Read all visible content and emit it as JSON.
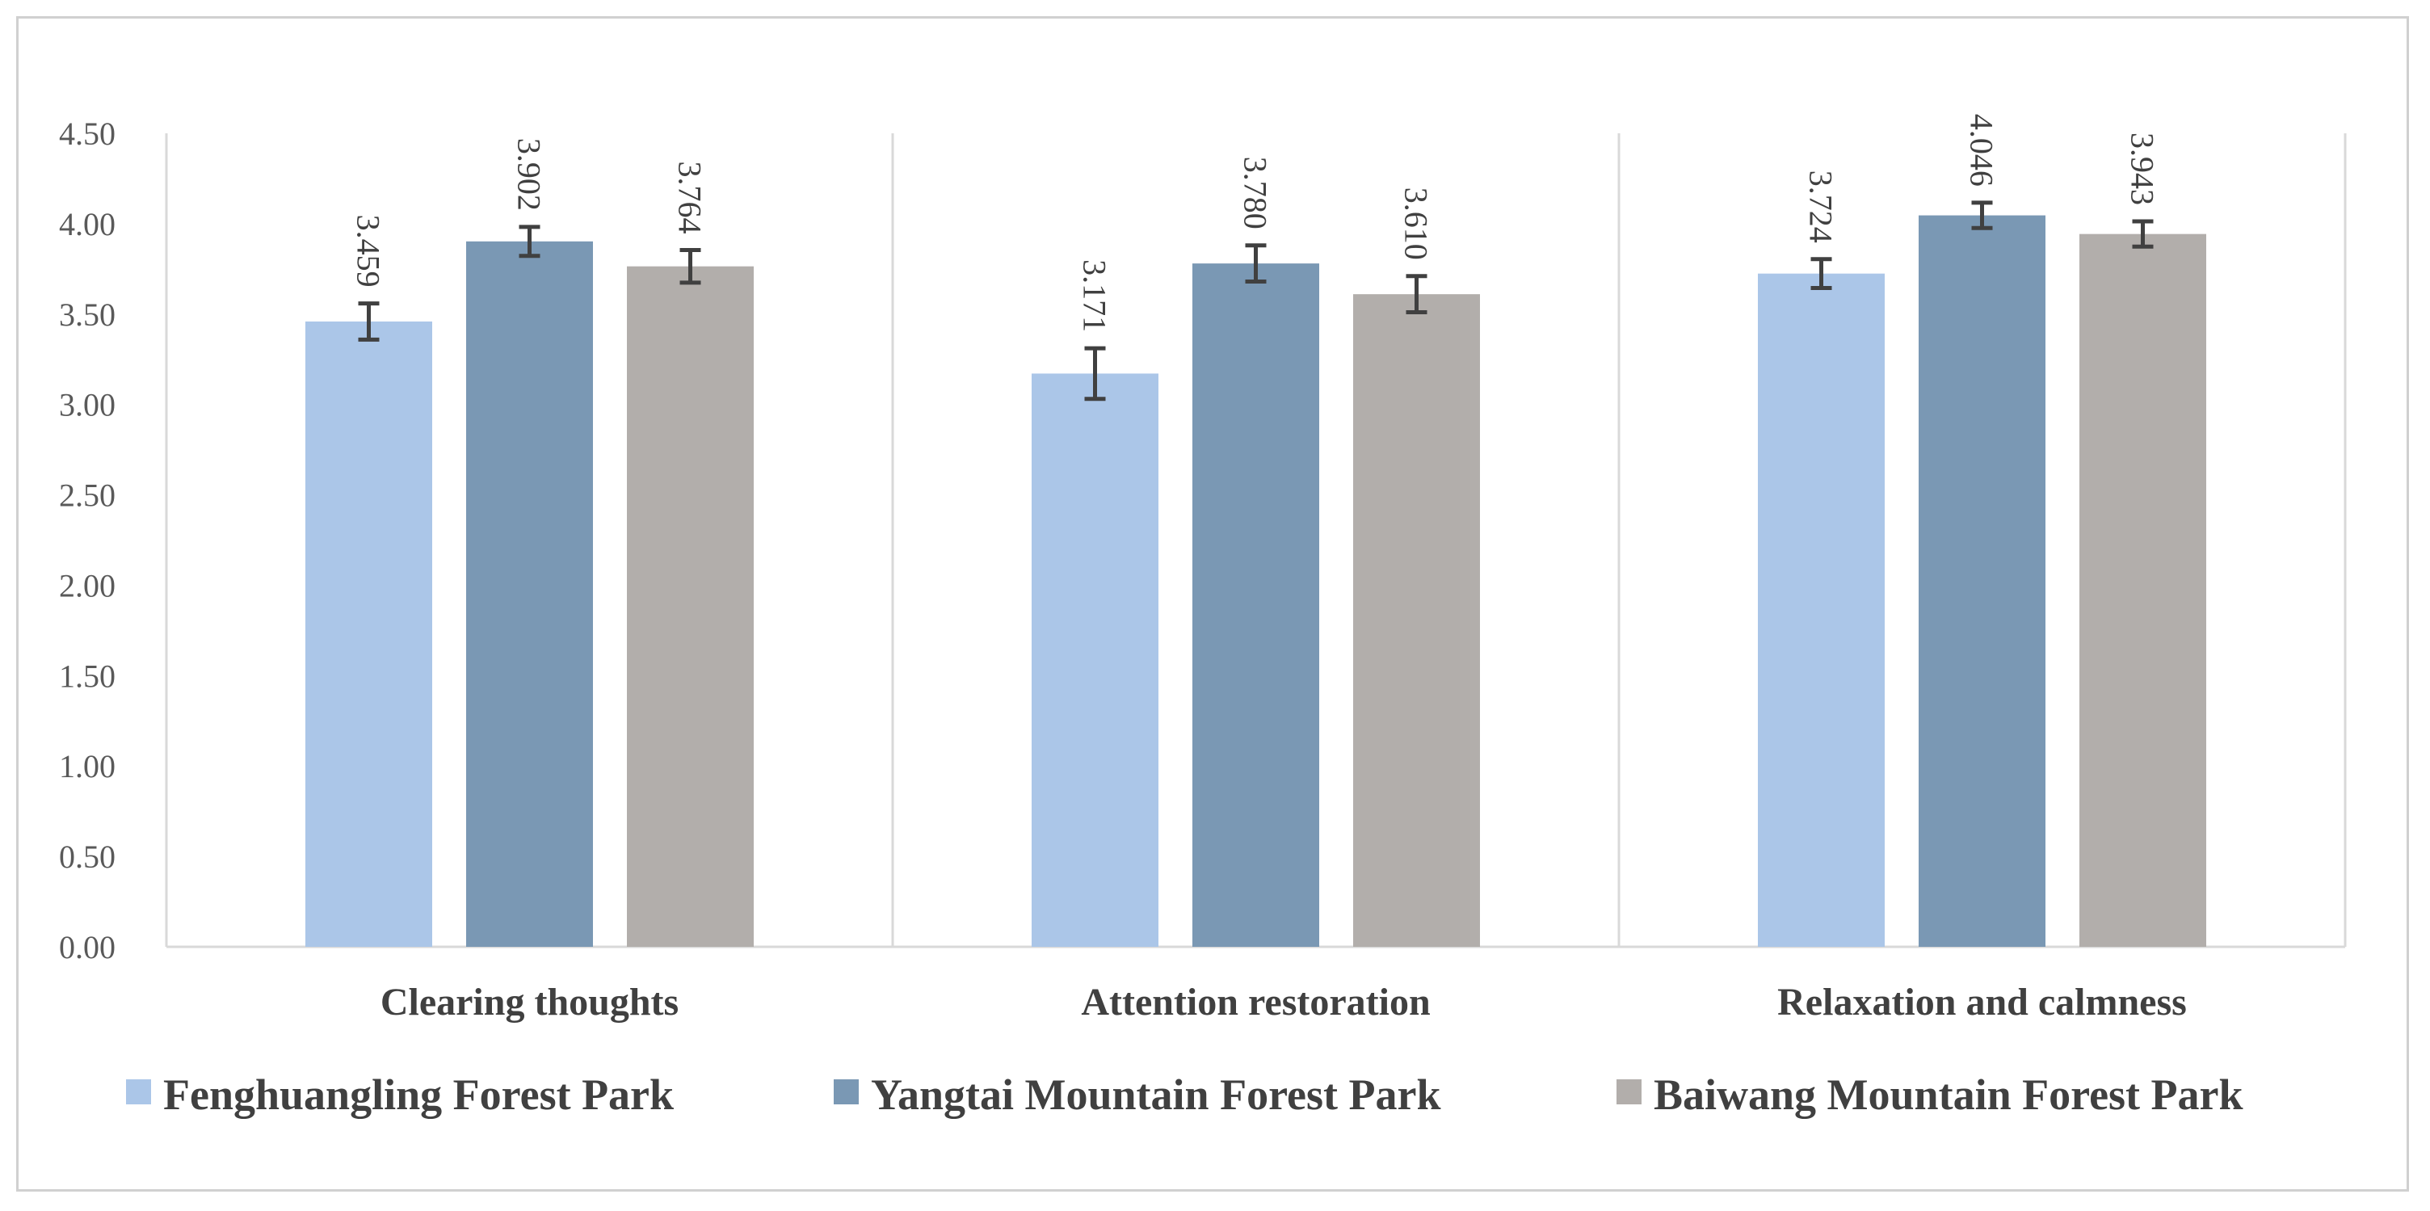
{
  "chart_data": {
    "type": "bar",
    "title": "",
    "xlabel": "",
    "ylabel": "",
    "ylim": [
      0,
      4.5
    ],
    "yticks": [
      "0.00",
      "0.50",
      "1.00",
      "1.50",
      "2.00",
      "2.50",
      "3.00",
      "3.50",
      "4.00",
      "4.50"
    ],
    "categories": [
      "Clearing thoughts",
      "Attention restoration",
      "Relaxation and calmness"
    ],
    "series": [
      {
        "name": "Fenghuangling Forest Park",
        "color": "#abc6e8",
        "values": [
          3.459,
          3.171,
          3.724
        ],
        "labels": [
          "3.459",
          "3.171",
          "3.724"
        ],
        "error": [
          0.1,
          0.14,
          0.08
        ]
      },
      {
        "name": "Yangtai Mountain Forest Park",
        "color": "#7a98b4",
        "values": [
          3.902,
          3.78,
          4.046
        ],
        "labels": [
          "3.902",
          "3.780",
          "4.046"
        ],
        "error": [
          0.08,
          0.1,
          0.07
        ]
      },
      {
        "name": "Baiwang Mountain Forest Park",
        "color": "#b2aeab",
        "values": [
          3.764,
          3.61,
          3.943
        ],
        "labels": [
          "3.764",
          "3.610",
          "3.943"
        ],
        "error": [
          0.09,
          0.1,
          0.07
        ]
      }
    ],
    "error_bar_color": "#404040",
    "grid": false,
    "category_separators": true,
    "legend_position": "bottom"
  }
}
